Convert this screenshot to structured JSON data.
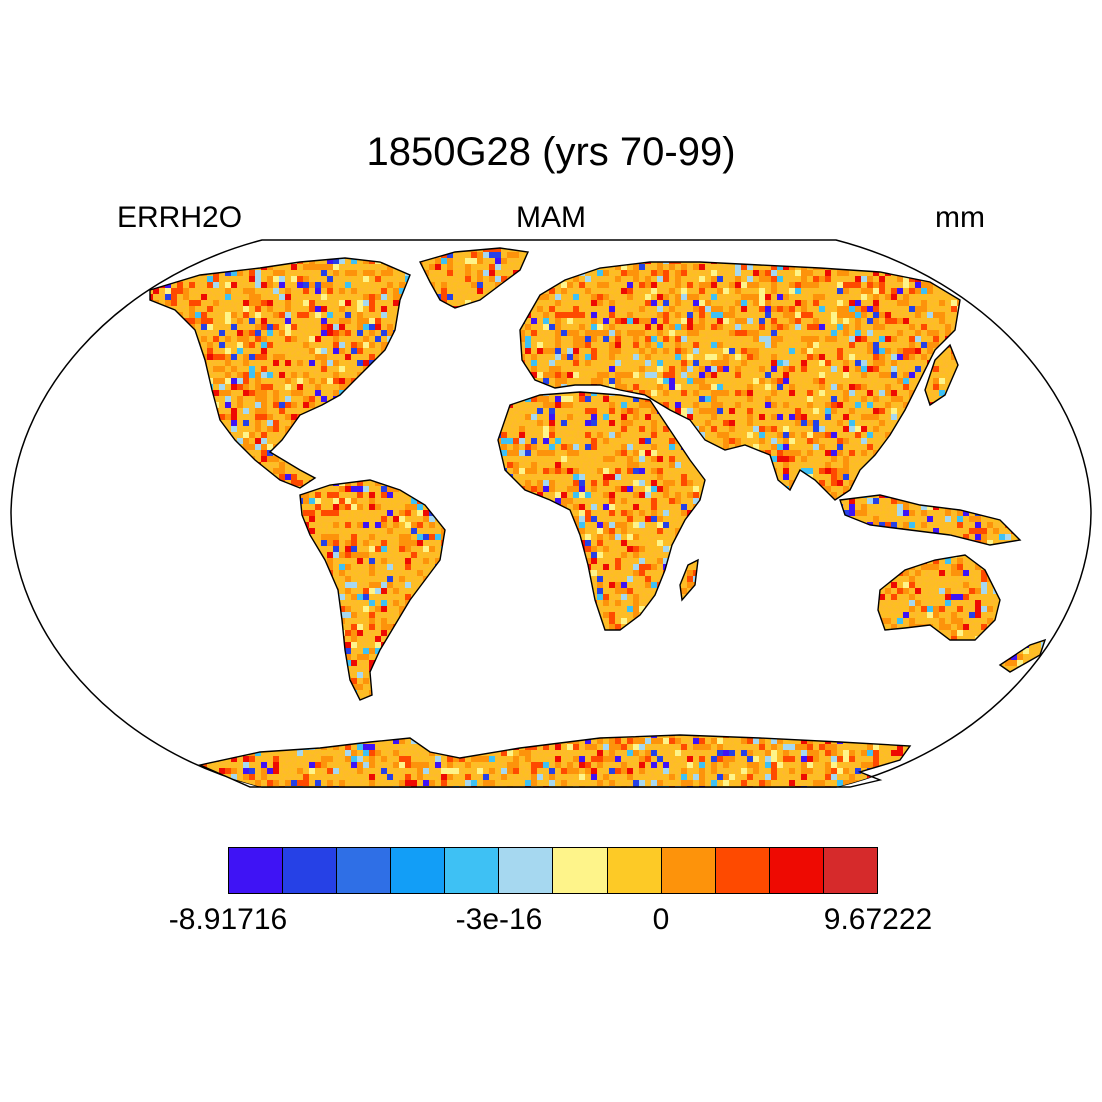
{
  "title": "1850G28 (yrs 70-99)",
  "left_string": "ERRH2O",
  "center_string": "MAM",
  "right_string": "mm",
  "projection": "robinson",
  "colorbar": {
    "colors": [
      "#3f13f5",
      "#2641e6",
      "#2f6fe6",
      "#129ef7",
      "#3ec1f4",
      "#a6d8f0",
      "#fef48a",
      "#fdca26",
      "#fd930b",
      "#fe4a00",
      "#ee0a02",
      "#d62a2b"
    ],
    "labels": [
      "-8.91716",
      "-3e-16",
      "0",
      "9.67222"
    ]
  },
  "land_fill_base": "#fdc020"
}
